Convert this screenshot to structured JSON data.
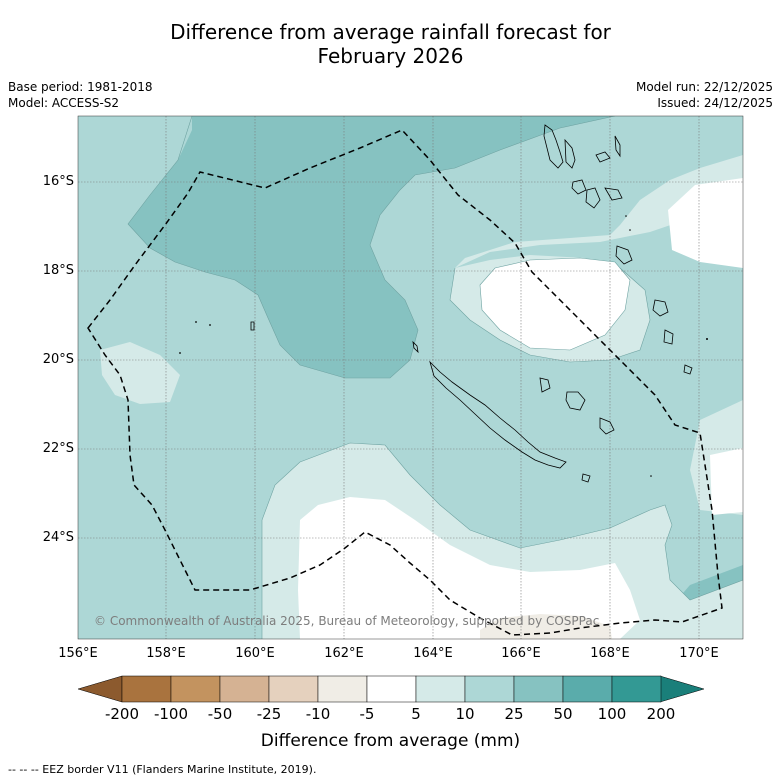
{
  "title": {
    "line1": "Difference from average rainfall forecast for",
    "line2": "February 2026"
  },
  "meta": {
    "base_period": "Base period: 1981-2018",
    "model": "Model: ACCESS-S2",
    "model_run": "Model run: 22/12/2025",
    "issued": "Issued: 24/12/2025"
  },
  "map": {
    "latitude_labels": [
      "16°S",
      "18°S",
      "20°S",
      "22°S",
      "24°S"
    ],
    "longitude_labels": [
      "156°E",
      "158°E",
      "160°E",
      "162°E",
      "164°E",
      "166°E",
      "168°E",
      "170°E"
    ],
    "credit": "© Commonwealth of Australia 2025, Bureau of Meteorology, supported by COSPPac",
    "colors": {
      "ocean_base": "#add7d6",
      "band_5_10": "#d5eae8",
      "band_10_25": "#add7d6",
      "band_25_50": "#86c2c1",
      "band_neutral": "#ffffff",
      "land_outline": "#000000"
    }
  },
  "colorbar": {
    "title": "Difference from average (mm)",
    "ticks": [
      "-200",
      "-100",
      "-50",
      "-25",
      "-10",
      "-5",
      "5",
      "10",
      "25",
      "50",
      "100",
      "200"
    ],
    "colors": [
      "#8c5a2e",
      "#a9733e",
      "#c3935f",
      "#d5b293",
      "#e5d1be",
      "#f0ede6",
      "#ffffff",
      "#d5eae8",
      "#add7d6",
      "#86c2c1",
      "#5aacab",
      "#339994",
      "#1a7f7a"
    ]
  },
  "footnote": "-- -- -- EEZ border V11 (Flanders Marine Institute, 2019)."
}
